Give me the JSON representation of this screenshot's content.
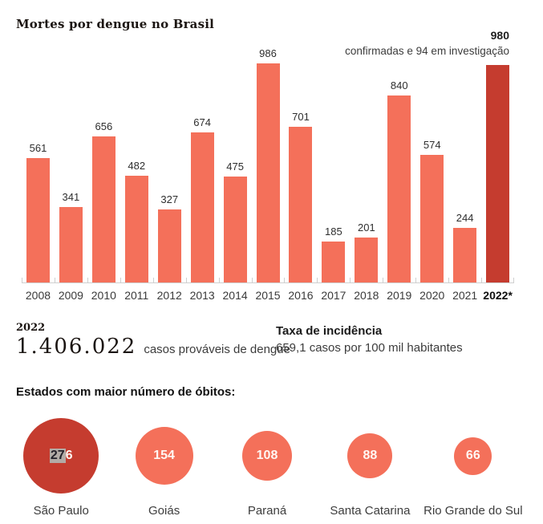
{
  "title": "Mortes por dengue no Brasil",
  "chart_data": {
    "type": "bar",
    "title": "Mortes por dengue no Brasil",
    "categories": [
      "2008",
      "2009",
      "2010",
      "2011",
      "2012",
      "2013",
      "2014",
      "2015",
      "2016",
      "2017",
      "2018",
      "2019",
      "2020",
      "2021",
      "2022*"
    ],
    "values": [
      561,
      341,
      656,
      482,
      327,
      674,
      475,
      986,
      701,
      185,
      201,
      840,
      574,
      244,
      980
    ],
    "highlight_index": 14,
    "annotation_value": "980",
    "annotation_text": "confirmadas e 94 em investigação",
    "xlabel": "",
    "ylabel": "",
    "ylim": [
      0,
      1000
    ],
    "grid": false,
    "legend": "none",
    "bar_color": "#f4705a",
    "highlight_color": "#c53c2f"
  },
  "stats": {
    "year_label": "2022",
    "cases_number": "1.406.022",
    "cases_suffix": "casos prováveis de dengue",
    "incidence_title": "Taxa de incidência",
    "incidence_text": "659,1 casos por 100 mil habitantes"
  },
  "states": {
    "heading": "Estados com maior número de óbitos:",
    "items": [
      {
        "name": "São Paulo",
        "value": "276",
        "selected_prefix": "27",
        "diameter": 94,
        "color": "#c53c2f"
      },
      {
        "name": "Goiás",
        "value": "154",
        "diameter": 72,
        "color": "#f4705a"
      },
      {
        "name": "Paraná",
        "value": "108",
        "diameter": 62,
        "color": "#f4705a"
      },
      {
        "name": "Santa Catarina",
        "value": "88",
        "diameter": 56,
        "color": "#f4705a"
      },
      {
        "name": "Rio Grande do Sul",
        "value": "66",
        "diameter": 47,
        "color": "#f4705a"
      }
    ]
  }
}
